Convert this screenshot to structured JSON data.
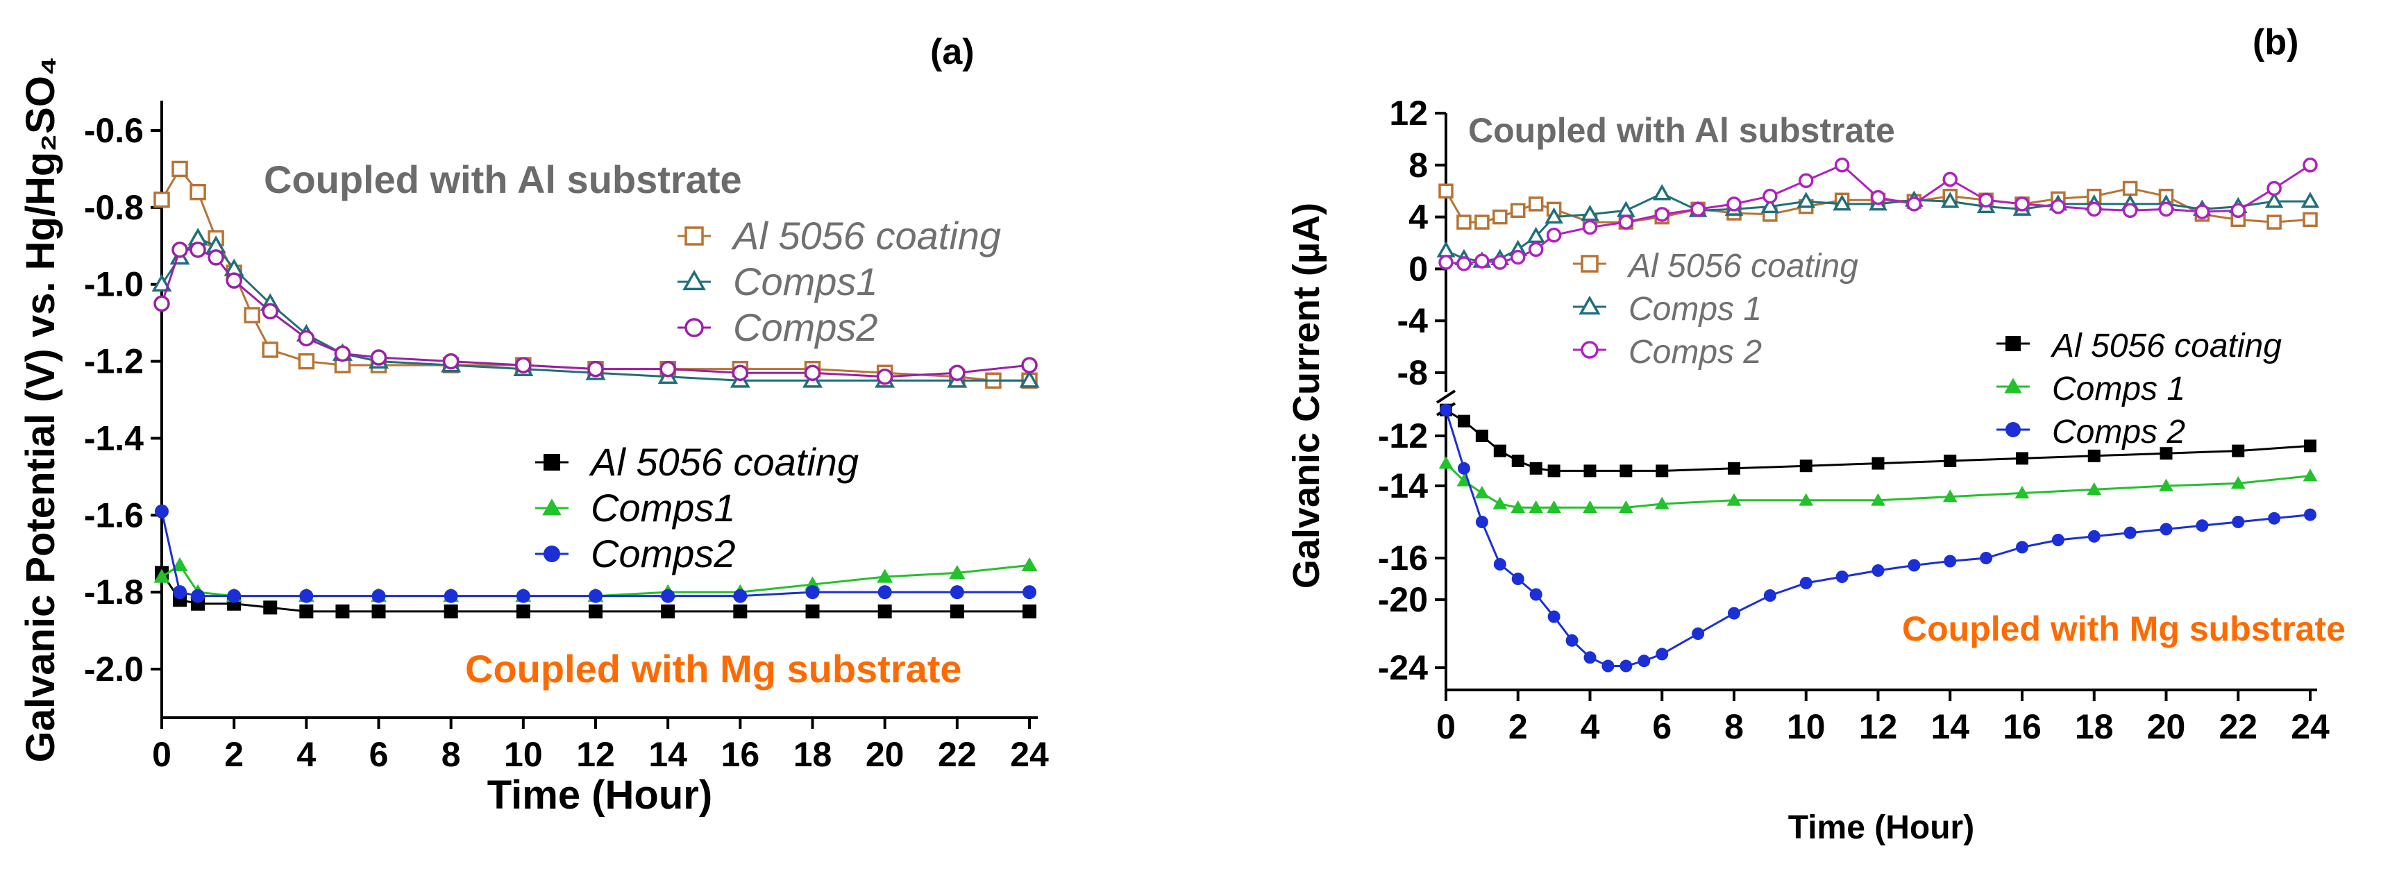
{
  "chart_data": [
    {
      "id": "a",
      "type": "line",
      "panel_label": "(a)",
      "xlabel": "Time (Hour)",
      "ylabel": "Galvanic Potential (V) vs. Hg/Hg₂SO₄",
      "xlim": [
        0,
        24
      ],
      "ylim": [
        -2.12,
        -0.52
      ],
      "xticks": [
        "0",
        "2",
        "4",
        "6",
        "8",
        "10",
        "12",
        "14",
        "16",
        "18",
        "20",
        "22",
        "24"
      ],
      "yticks": [
        {
          "v": -0.6,
          "label": "-0.6"
        },
        {
          "v": -0.8,
          "label": "-0.8"
        },
        {
          "v": -1.0,
          "label": "-1.0"
        },
        {
          "v": -1.2,
          "label": "-1.2"
        },
        {
          "v": -1.4,
          "label": "-1.4"
        },
        {
          "v": -1.6,
          "label": "-1.6"
        },
        {
          "v": -1.8,
          "label": "-1.8"
        },
        {
          "v": -2.0,
          "label": "-2.0"
        }
      ],
      "annotations": [
        {
          "text": "Coupled with Al substrate",
          "color": "#6b6b6b"
        },
        {
          "text": "Coupled with Mg substrate",
          "color": "#ff6a00"
        }
      ],
      "series": [
        {
          "name": "Al 5056 coating",
          "group": "Al",
          "color": "#b87333",
          "marker": "square",
          "filled": false,
          "legend_color": "#707070",
          "x": [
            0,
            0.5,
            1,
            1.5,
            2,
            2.5,
            3,
            4,
            5,
            6,
            8,
            10,
            12,
            14,
            16,
            18,
            20,
            22,
            23,
            24
          ],
          "y": [
            -0.78,
            -0.7,
            -0.76,
            -0.88,
            -0.97,
            -1.08,
            -1.17,
            -1.2,
            -1.21,
            -1.21,
            -1.21,
            -1.21,
            -1.22,
            -1.22,
            -1.22,
            -1.22,
            -1.23,
            -1.24,
            -1.25,
            -1.25
          ]
        },
        {
          "name": "Comps1",
          "group": "Al",
          "color": "#1f6f7a",
          "marker": "triangle",
          "filled": false,
          "legend_color": "#707070",
          "x": [
            0,
            0.5,
            1,
            1.5,
            2,
            3,
            4,
            5,
            6,
            8,
            10,
            12,
            14,
            16,
            18,
            20,
            22,
            24
          ],
          "y": [
            -1.0,
            -0.93,
            -0.88,
            -0.9,
            -0.96,
            -1.05,
            -1.13,
            -1.18,
            -1.2,
            -1.21,
            -1.22,
            -1.23,
            -1.24,
            -1.25,
            -1.25,
            -1.25,
            -1.25,
            -1.25
          ]
        },
        {
          "name": "Comps2",
          "group": "Al",
          "color": "#9b1fa8",
          "marker": "circle",
          "filled": false,
          "legend_color": "#707070",
          "x": [
            0,
            0.5,
            1,
            1.5,
            2,
            3,
            4,
            5,
            6,
            8,
            10,
            12,
            14,
            16,
            18,
            20,
            22,
            24
          ],
          "y": [
            -1.05,
            -0.91,
            -0.91,
            -0.93,
            -0.99,
            -1.07,
            -1.14,
            -1.18,
            -1.19,
            -1.2,
            -1.21,
            -1.22,
            -1.22,
            -1.23,
            -1.23,
            -1.24,
            -1.23,
            -1.21
          ]
        },
        {
          "name": "Al 5056 coating",
          "group": "Mg",
          "color": "#000000",
          "marker": "square",
          "filled": true,
          "legend_color": "#000000",
          "x": [
            0,
            0.5,
            1,
            2,
            3,
            4,
            5,
            6,
            8,
            10,
            12,
            14,
            16,
            18,
            20,
            22,
            24
          ],
          "y": [
            -1.75,
            -1.82,
            -1.83,
            -1.83,
            -1.84,
            -1.85,
            -1.85,
            -1.85,
            -1.85,
            -1.85,
            -1.85,
            -1.85,
            -1.85,
            -1.85,
            -1.85,
            -1.85,
            -1.85
          ]
        },
        {
          "name": "Comps1",
          "group": "Mg",
          "color": "#22c22a",
          "marker": "triangle",
          "filled": true,
          "legend_color": "#000000",
          "x": [
            0,
            0.5,
            1,
            2,
            4,
            6,
            8,
            10,
            12,
            14,
            16,
            18,
            20,
            22,
            24
          ],
          "y": [
            -1.76,
            -1.73,
            -1.8,
            -1.81,
            -1.81,
            -1.81,
            -1.81,
            -1.81,
            -1.81,
            -1.8,
            -1.8,
            -1.78,
            -1.76,
            -1.75,
            -1.73
          ]
        },
        {
          "name": "Comps2",
          "group": "Mg",
          "color": "#1b2fd6",
          "marker": "circle",
          "filled": true,
          "legend_color": "#000000",
          "x": [
            0,
            0.5,
            1,
            2,
            4,
            6,
            8,
            10,
            12,
            14,
            16,
            18,
            20,
            22,
            24
          ],
          "y": [
            -1.59,
            -1.8,
            -1.81,
            -1.81,
            -1.81,
            -1.81,
            -1.81,
            -1.81,
            -1.81,
            -1.81,
            -1.81,
            -1.8,
            -1.8,
            -1.8,
            -1.8
          ]
        }
      ]
    },
    {
      "id": "b",
      "type": "line",
      "panel_label": "(b)",
      "xlabel": "Time (Hour)",
      "ylabel": "Galvanic Current (µA)",
      "xlim": [
        0,
        24
      ],
      "axis_break": "between -8 and -12",
      "xticks": [
        "0",
        "2",
        "4",
        "6",
        "8",
        "10",
        "12",
        "14",
        "16",
        "18",
        "20",
        "22",
        "24"
      ],
      "yticks": [
        {
          "v": 12,
          "label": "12"
        },
        {
          "v": 8,
          "label": "8"
        },
        {
          "v": 4,
          "label": "4"
        },
        {
          "v": 0,
          "label": "0"
        },
        {
          "v": -4,
          "label": "-4"
        },
        {
          "v": -8,
          "label": "-8"
        },
        {
          "v": -12,
          "label": "-12"
        },
        {
          "v": -14,
          "label": "-14"
        },
        {
          "v": -16,
          "label": "-16"
        },
        {
          "v": -20,
          "label": "-20"
        },
        {
          "v": -24,
          "label": "-24"
        }
      ],
      "annotations": [
        {
          "text": "Coupled with Al substrate",
          "color": "#6b6b6b"
        },
        {
          "text": "Coupled with Mg substrate",
          "color": "#ff6a00"
        }
      ],
      "series": [
        {
          "name": "Al 5056 coating",
          "group": "Al",
          "color": "#b87333",
          "marker": "square",
          "filled": false,
          "legend_color": "#707070",
          "x": [
            0,
            0.5,
            1,
            1.5,
            2,
            2.5,
            3,
            4,
            5,
            6,
            7,
            8,
            9,
            10,
            11,
            12,
            13,
            14,
            15,
            16,
            17,
            18,
            19,
            20,
            21,
            22,
            23,
            24
          ],
          "y": [
            6,
            3.6,
            3.6,
            4,
            4.5,
            5,
            4.6,
            3.6,
            3.6,
            4,
            4.6,
            4.3,
            4.2,
            4.8,
            5.3,
            5.3,
            5.2,
            5.6,
            5.3,
            5.0,
            5.4,
            5.6,
            6.2,
            5.6,
            4.2,
            3.8,
            3.6,
            3.8
          ]
        },
        {
          "name": "Comps 1",
          "group": "Al",
          "color": "#1f6f7a",
          "marker": "triangle",
          "filled": false,
          "legend_color": "#707070",
          "x": [
            0,
            0.5,
            1,
            1.5,
            2,
            2.5,
            3,
            4,
            5,
            6,
            7,
            8,
            9,
            10,
            11,
            12,
            13,
            14,
            15,
            16,
            17,
            18,
            19,
            20,
            21,
            22,
            23,
            24
          ],
          "y": [
            1.4,
            0.8,
            0.6,
            0.8,
            1.5,
            2.5,
            4,
            4.2,
            4.5,
            5.8,
            4.5,
            4.6,
            4.8,
            5.2,
            5.0,
            5.0,
            5.3,
            5.2,
            4.8,
            4.6,
            5.0,
            5.0,
            5.0,
            5.0,
            4.6,
            4.8,
            5.2,
            5.2
          ]
        },
        {
          "name": "Comps 2",
          "group": "Al",
          "color": "#b020c0",
          "marker": "circle",
          "filled": false,
          "legend_color": "#707070",
          "x": [
            0,
            0.5,
            1,
            1.5,
            2,
            2.5,
            3,
            4,
            5,
            6,
            7,
            8,
            9,
            10,
            11,
            12,
            13,
            14,
            15,
            16,
            17,
            18,
            19,
            20,
            21,
            22,
            23,
            24
          ],
          "y": [
            0.5,
            0.4,
            0.6,
            0.5,
            0.9,
            1.5,
            2.6,
            3.2,
            3.6,
            4.2,
            4.6,
            5.0,
            5.6,
            6.8,
            8,
            5.5,
            5.0,
            6.9,
            5.3,
            5.0,
            4.8,
            4.6,
            4.5,
            4.6,
            4.4,
            4.5,
            6.2,
            8
          ]
        },
        {
          "name": "Al 5056 coating",
          "group": "Mg",
          "color": "#000000",
          "marker": "square",
          "filled": true,
          "legend_color": "#000000",
          "x": [
            0,
            0.5,
            1,
            1.5,
            2,
            2.5,
            3,
            4,
            5,
            6,
            8,
            10,
            12,
            14,
            16,
            18,
            20,
            22,
            24
          ],
          "y": [
            -10.6,
            -11.2,
            -12.0,
            -12.6,
            -13.0,
            -13.3,
            -13.4,
            -13.4,
            -13.4,
            -13.4,
            -13.3,
            -13.2,
            -13.1,
            -13.0,
            -12.9,
            -12.8,
            -12.7,
            -12.6,
            -12.4
          ]
        },
        {
          "name": "Comps 1",
          "group": "Mg",
          "color": "#22c22a",
          "marker": "triangle",
          "filled": true,
          "legend_color": "#000000",
          "x": [
            0,
            0.5,
            1,
            1.5,
            2,
            2.5,
            3,
            4,
            5,
            6,
            8,
            10,
            12,
            14,
            16,
            18,
            20,
            22,
            24
          ],
          "y": [
            -13.1,
            -13.8,
            -14.2,
            -14.5,
            -14.6,
            -14.6,
            -14.6,
            -14.6,
            -14.6,
            -14.5,
            -14.4,
            -14.4,
            -14.4,
            -14.3,
            -14.2,
            -14.1,
            -14.0,
            -13.9,
            -13.6
          ]
        },
        {
          "name": "Comps 2",
          "group": "Mg",
          "color": "#1b2fd6",
          "marker": "circle",
          "filled": true,
          "legend_color": "#000000",
          "x": [
            0,
            0.5,
            1,
            1.5,
            2,
            2.5,
            3,
            3.5,
            4,
            4.5,
            5,
            5.5,
            6,
            7,
            8,
            9,
            10,
            11,
            12,
            13,
            14,
            15,
            16,
            17,
            18,
            19,
            20,
            21,
            22,
            23,
            24
          ],
          "y": [
            -10.6,
            -13.3,
            -15.0,
            -16.6,
            -18.0,
            -19.5,
            -21.0,
            -22.4,
            -23.4,
            -23.9,
            -23.9,
            -23.6,
            -23.2,
            -22.0,
            -20.8,
            -19.6,
            -18.4,
            -17.8,
            -17.2,
            -16.7,
            -16.3,
            -16.0,
            -15.7,
            -15.5,
            -15.4,
            -15.3,
            -15.2,
            -15.1,
            -15.0,
            -14.9,
            -14.8
          ]
        }
      ]
    }
  ]
}
